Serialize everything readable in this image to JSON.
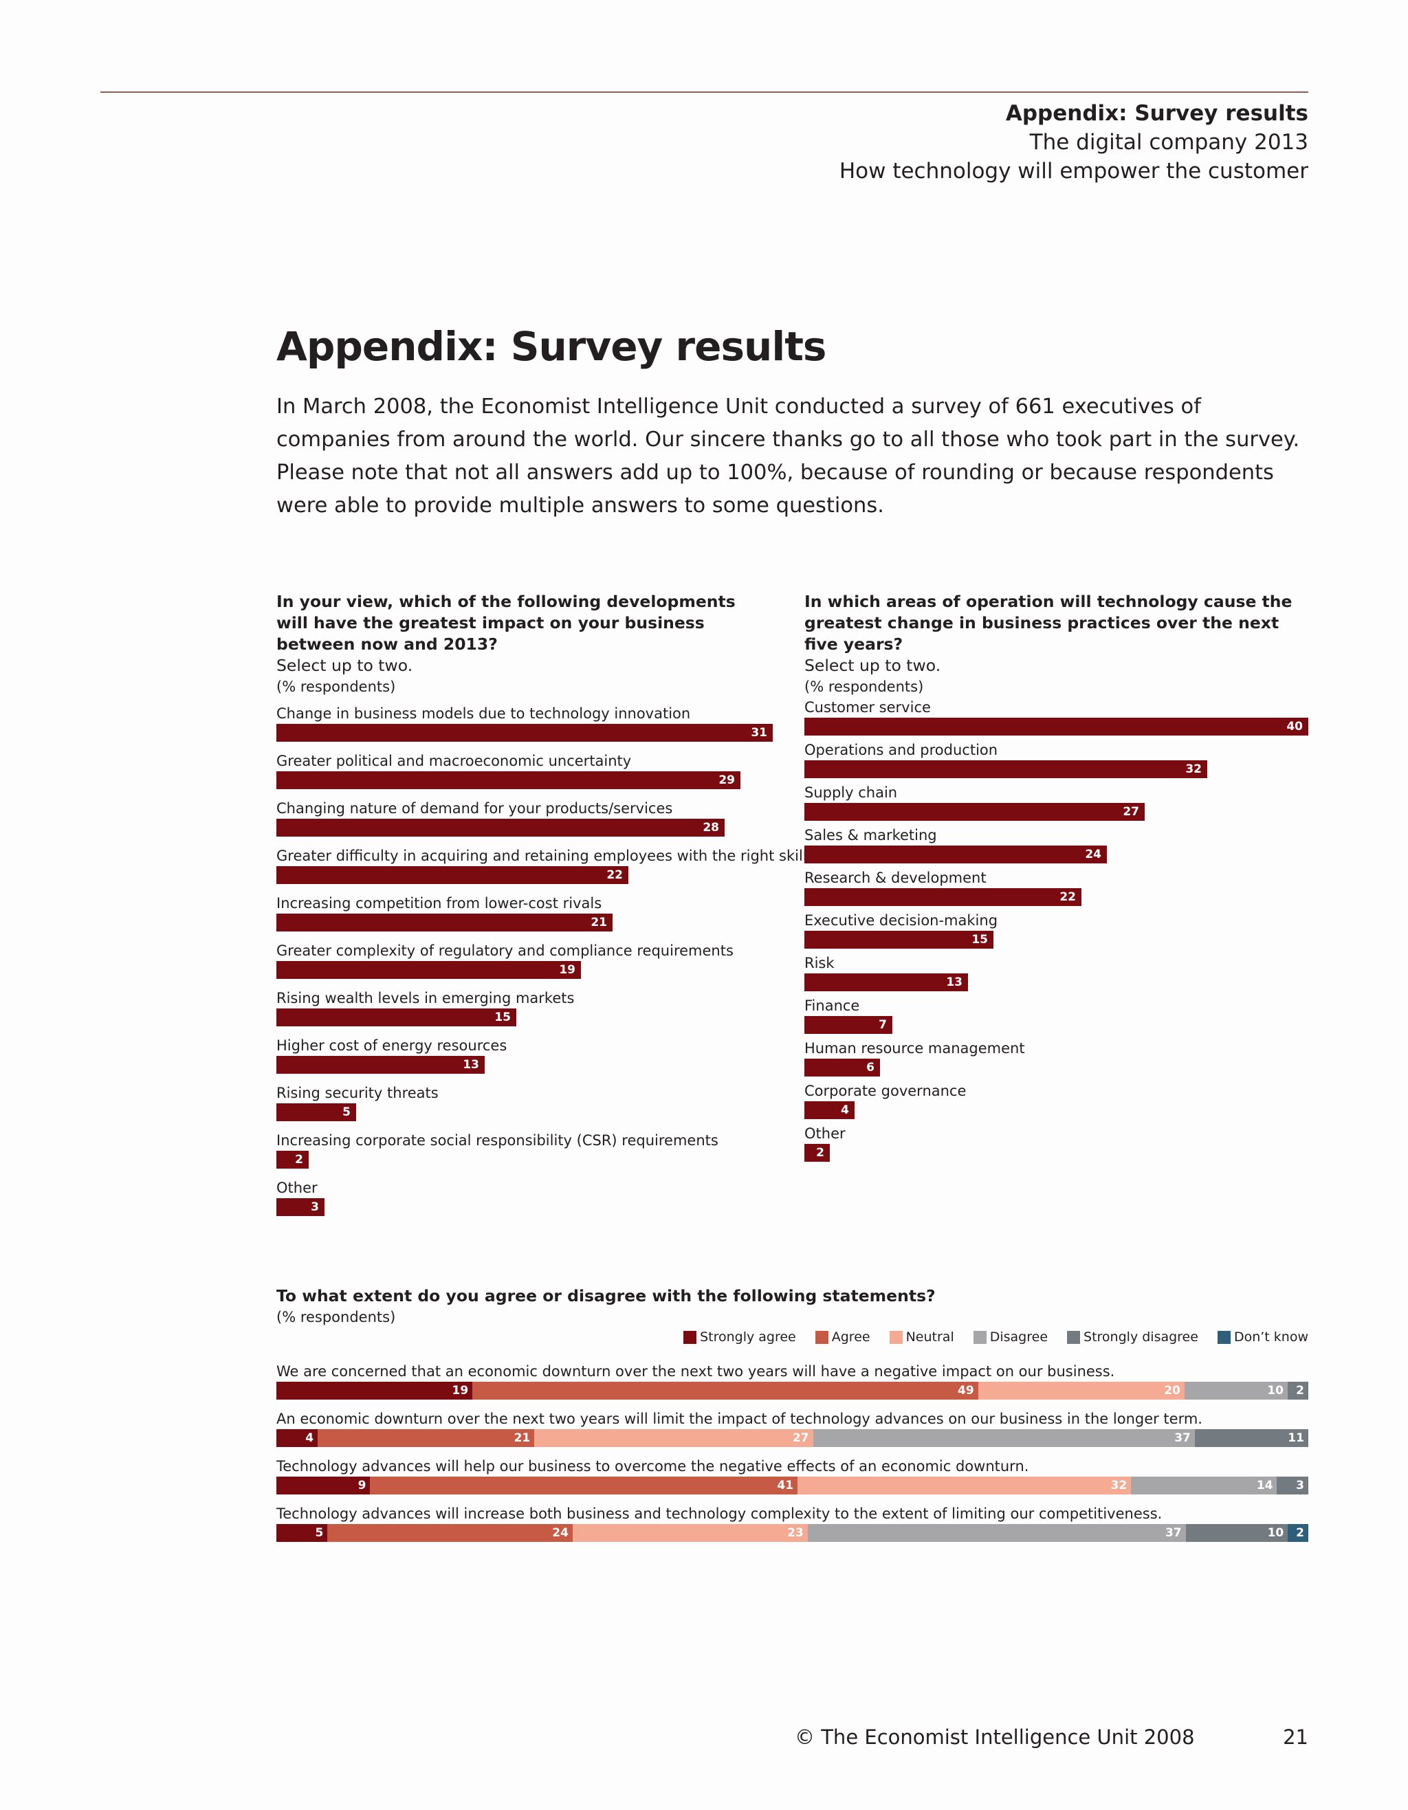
{
  "header": {
    "title": "Appendix: Survey results",
    "line2": "The digital company 2013",
    "line3": "How technology will empower the customer"
  },
  "main": {
    "title": "Appendix: Survey results",
    "intro": "In March 2008, the Economist Intelligence Unit conducted a survey of 661 executives of companies from around the world. Our sincere thanks go to all those who took part in the survey. Please note that not all answers add up to 100%, because of rounding or because respondents were able to provide multiple answers to some questions."
  },
  "colors": {
    "bar": "#7a0b10",
    "strongly_agree": "#7a0b10",
    "agree": "#c65a45",
    "neutral": "#f5aa93",
    "disagree": "#a6a6a8",
    "strongly_disagree": "#737a80",
    "dont_know": "#2e5f7a"
  },
  "chart_data": [
    {
      "type": "bar",
      "orientation": "horizontal",
      "title": "In your view, which of the following developments will have the greatest impact on your business between now and 2013?",
      "subtitle": "Select up to two.",
      "note": "(% respondents)",
      "categories": [
        "Change in business models due to technology innovation",
        "Greater political and macroeconomic uncertainty",
        "Changing nature of demand for your products/services",
        "Greater difficulty in acquiring and retaining employees with the right skills",
        "Increasing competition from lower-cost rivals",
        "Greater complexity of regulatory and compliance requirements",
        "Rising wealth levels in emerging markets",
        "Higher cost of energy resources",
        "Rising security threats",
        "Increasing corporate social responsibility (CSR) requirements",
        "Other"
      ],
      "values": [
        31,
        29,
        28,
        22,
        21,
        19,
        15,
        13,
        5,
        2,
        3
      ],
      "xlim": [
        0,
        31
      ]
    },
    {
      "type": "bar",
      "orientation": "horizontal",
      "title": "In which areas of operation will technology cause the greatest change in business practices over the next five years?",
      "subtitle": "Select up to two.",
      "note": "(% respondents)",
      "categories": [
        "Customer service",
        "Operations and production",
        "Supply chain",
        "Sales & marketing",
        "Research & development",
        "Executive decision-making",
        "Risk",
        "Finance",
        "Human resource management",
        "Corporate governance",
        "Other"
      ],
      "values": [
        40,
        32,
        27,
        24,
        22,
        15,
        13,
        7,
        6,
        4,
        2
      ],
      "xlim": [
        0,
        40
      ]
    },
    {
      "type": "bar",
      "orientation": "horizontal",
      "stacked": true,
      "title": "To what extent do you agree or disagree with the following statements?",
      "note": "(% respondents)",
      "legend_position": "top-right",
      "categories": [
        "We are concerned that an economic downturn over the next two years will have a negative impact on our business.",
        "An economic downturn over the next two years will limit the impact of technology advances on our business in the longer term.",
        "Technology advances will help our business to overcome the negative effects of an economic downturn.",
        "Technology advances will increase both business and technology complexity to the extent of limiting our competitiveness."
      ],
      "series": [
        {
          "name": "Strongly agree",
          "color": "#7a0b10",
          "values": [
            19,
            4,
            9,
            5
          ]
        },
        {
          "name": "Agree",
          "color": "#c65a45",
          "values": [
            49,
            21,
            41,
            24
          ]
        },
        {
          "name": "Neutral",
          "color": "#f5aa93",
          "values": [
            20,
            27,
            32,
            23
          ]
        },
        {
          "name": "Disagree",
          "color": "#a6a6a8",
          "values": [
            10,
            37,
            14,
            37
          ]
        },
        {
          "name": "Strongly disagree",
          "color": "#737a80",
          "values": [
            2,
            11,
            3,
            10
          ]
        },
        {
          "name": "Don’t know",
          "color": "#2e5f7a",
          "values": [
            0,
            0,
            0,
            2
          ]
        }
      ]
    }
  ],
  "footer": {
    "copyright": "© The Economist Intelligence Unit 2008",
    "page_number": "21"
  }
}
